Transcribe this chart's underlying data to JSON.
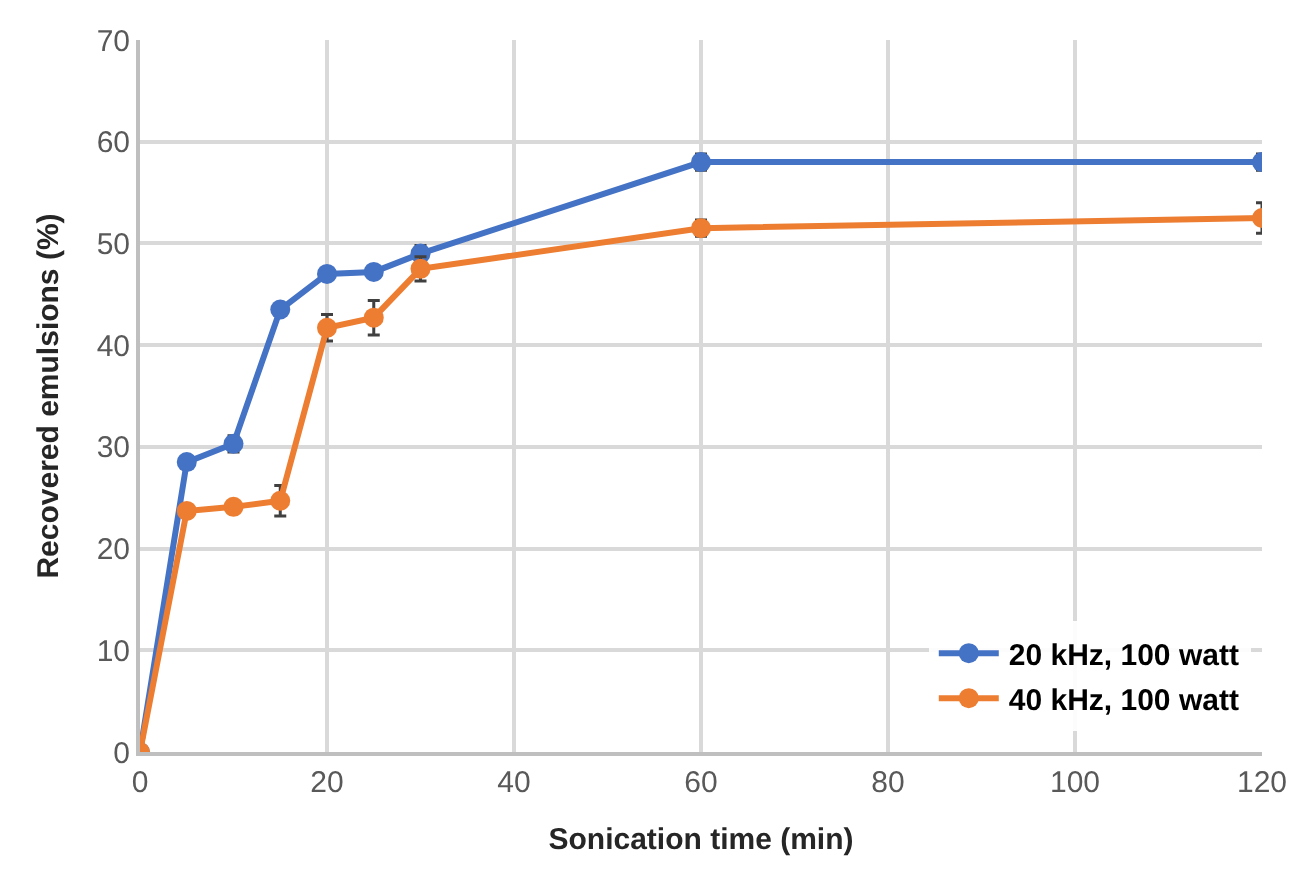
{
  "chart_data": {
    "type": "line",
    "xlabel": "Sonication time (min)",
    "ylabel": "Recovered emulsions (%)",
    "x": [
      0,
      5,
      10,
      15,
      20,
      25,
      30,
      60,
      120
    ],
    "series": [
      {
        "name": "20 kHz, 100 watt",
        "color": "#4472c4",
        "values": [
          0,
          28.5,
          30.3,
          43.5,
          47,
          47.2,
          49,
          58,
          58
        ],
        "errors": [
          null,
          null,
          0.8,
          null,
          null,
          null,
          0.8,
          0.8,
          0.8
        ]
      },
      {
        "name": "40 kHz, 100 watt",
        "color": "#ed7d31",
        "values": [
          0,
          23.7,
          24.1,
          24.7,
          41.7,
          42.7,
          47.5,
          51.5,
          52.5
        ],
        "errors": [
          null,
          null,
          null,
          1.5,
          1.3,
          1.7,
          1.2,
          0.8,
          1.5
        ]
      }
    ],
    "xlim": [
      0,
      120
    ],
    "xticks": [
      0,
      20,
      40,
      60,
      80,
      100,
      120
    ],
    "ylim": [
      0,
      70
    ],
    "yticks": [
      0,
      10,
      20,
      30,
      40,
      50,
      60,
      70
    ],
    "grid": true,
    "legend": "bottom right",
    "marker": "circle",
    "line_style": "solid"
  }
}
